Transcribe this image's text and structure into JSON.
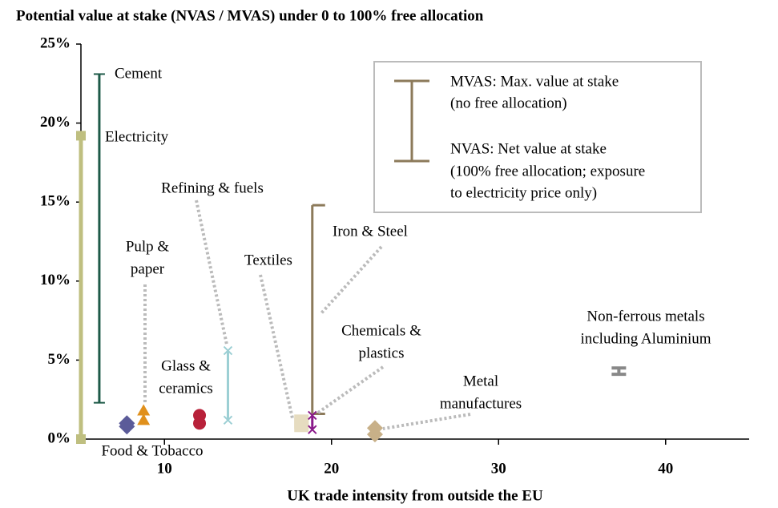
{
  "chart_data": {
    "type": "range",
    "title": "Potential value at stake (NVAS / MVAS) under 0 to 100% free allocation",
    "x_label": "UK trade intensity from outside the EU",
    "xlim": [
      5,
      45
    ],
    "xticks": [
      10,
      20,
      30,
      40
    ],
    "ylim": [
      0,
      25
    ],
    "yticks": [
      {
        "value": 0,
        "label": "0%"
      },
      {
        "value": 5,
        "label": "5%"
      },
      {
        "value": 10,
        "label": "10%"
      },
      {
        "value": 15,
        "label": "15%"
      },
      {
        "value": 20,
        "label": "20%"
      },
      {
        "value": 25,
        "label": "25%"
      }
    ],
    "legend": [
      "MVAS: Max. value at stake",
      "(no free allocation)",
      "NVAS: Net value at stake",
      "(100% free allocation; exposure",
      "to electricity price only)"
    ],
    "series": [
      {
        "name": [
          "Electricity"
        ],
        "color": "#bfbf80",
        "marker": "square-bar",
        "x": 5,
        "low": 0,
        "high": 19.2
      },
      {
        "name": [
          "Cement"
        ],
        "color": "#1e5a48",
        "marker": "plus",
        "x": 6.1,
        "low": 2.3,
        "high": 23.1
      },
      {
        "name": [
          "Food & Tobacco"
        ],
        "color": "#5b5b99",
        "marker": "diamond",
        "x": 7.75,
        "low": 0.8,
        "high": 1.0
      },
      {
        "name": [
          "Pulp &",
          "paper"
        ],
        "color": "#e0901c",
        "marker": "triangle",
        "x": 8.75,
        "low": 1.2,
        "high": 1.8
      },
      {
        "name": [
          "Glass &",
          "ceramics"
        ],
        "color": "#b8213a",
        "marker": "circle",
        "x": 12.1,
        "low": 1.0,
        "high": 1.5
      },
      {
        "name": [
          "Refining & fuels"
        ],
        "color": "#9ccfd4",
        "marker": "x",
        "x": 13.8,
        "low": 1.2,
        "high": 5.6
      },
      {
        "name": [
          "Textiles"
        ],
        "color": "#e6dcc0",
        "marker": "square",
        "x": 18.2,
        "low": 0.9,
        "high": 1.1
      },
      {
        "name": [
          "Iron & Steel"
        ],
        "color": "#8c7a5a",
        "marker": "cap-right",
        "x": 18.85,
        "low": 1.6,
        "high": 14.8
      },
      {
        "name": [
          "Chemicals &",
          "plastics"
        ],
        "color": "#8a1a8a",
        "marker": "x",
        "x": 18.85,
        "low": 0.6,
        "high": 1.5
      },
      {
        "name": [
          "Metal",
          "manufactures"
        ],
        "color": "#c8b088",
        "marker": "diamond",
        "x": 22.6,
        "low": 0.3,
        "high": 0.7
      },
      {
        "name": [
          "Non-ferrous metals",
          "including Aluminium"
        ],
        "color": "#888888",
        "marker": "cap",
        "x": 37.2,
        "low": 4.1,
        "high": 4.5
      }
    ]
  }
}
